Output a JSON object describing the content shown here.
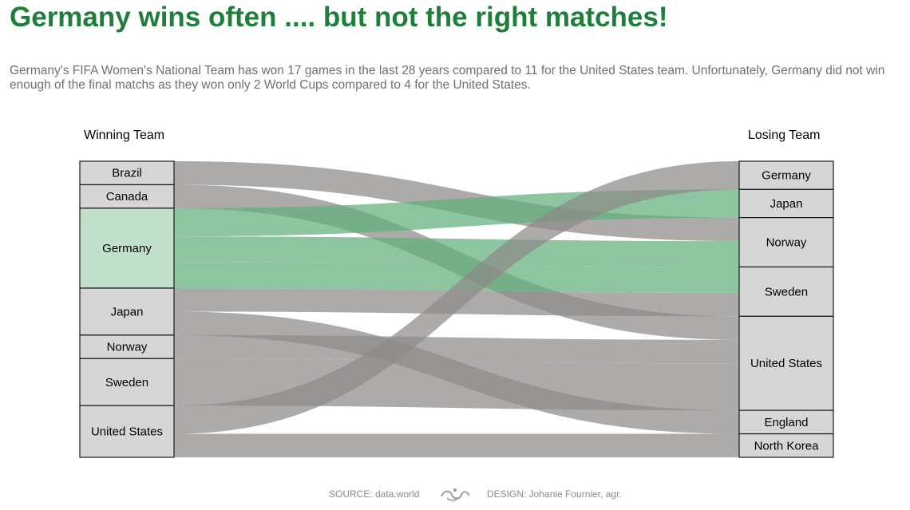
{
  "title": "Germany wins often .... but not the right matches!",
  "subtitle": "Germany's FIFA Women's National Team has won 17 games in the last 28 years compared to 11 for the United States team. Unfortunately, Germany did not win enough of the final matchs as they won only 2 World Cups compared to 4 for the United States.",
  "footer": {
    "source": "SOURCE: data.world",
    "design": "DESIGN: Johanie Fournier, agr."
  },
  "colors": {
    "highlight_flow": "#5fae7a",
    "default_flow": "#8e8b89",
    "highlight_node": "#c3e0cd",
    "default_node": "#d6d6d6",
    "title": "#1e7f3a"
  },
  "chart_data": {
    "type": "sankey",
    "left_header": "Winning Team",
    "right_header": "Losing Team",
    "highlight": "Germany",
    "left_nodes": [
      "Brazil",
      "Canada",
      "Germany",
      "Japan",
      "Norway",
      "Sweden",
      "United States"
    ],
    "right_nodes": [
      "Germany",
      "Japan",
      "Norway",
      "Sweden",
      "United States",
      "England",
      "North Korea"
    ],
    "links": [
      {
        "source": "Brazil",
        "target": "Norway",
        "value": 1
      },
      {
        "source": "Canada",
        "target": "United States",
        "value": 1
      },
      {
        "source": "Germany",
        "target": "Japan",
        "value": 1.2
      },
      {
        "source": "Germany",
        "target": "Norway",
        "value": 1.1
      },
      {
        "source": "Germany",
        "target": "Sweden",
        "value": 1.1
      },
      {
        "source": "Japan",
        "target": "Sweden",
        "value": 1
      },
      {
        "source": "Japan",
        "target": "England",
        "value": 1
      },
      {
        "source": "Norway",
        "target": "United States",
        "value": 1
      },
      {
        "source": "Sweden",
        "target": "United States",
        "value": 2
      },
      {
        "source": "United States",
        "target": "Germany",
        "value": 1.2
      },
      {
        "source": "United States",
        "target": "North Korea",
        "value": 1
      }
    ]
  }
}
